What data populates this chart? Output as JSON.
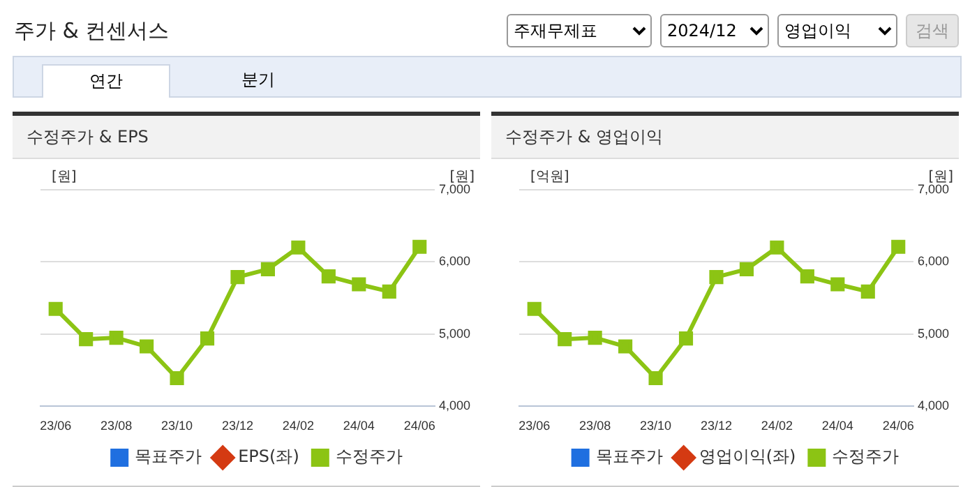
{
  "chart_data": [
    {
      "type": "other",
      "title": "주가 & 컨센서스",
      "annotations": [
        "주재무제표",
        "2024/12",
        "영업이익",
        "검색",
        "연간",
        "분기"
      ]
    },
    {
      "type": "line",
      "title": "수정주가 & EPS",
      "ylabel": "[원]",
      "y2label": "[원]",
      "categories": [
        "23/06",
        null,
        "23/08",
        null,
        "23/10",
        null,
        "23/12",
        null,
        "24/02",
        null,
        "24/04",
        null,
        "24/06"
      ],
      "y2lim": [
        4000,
        7000
      ],
      "y2ticks": [
        {
          "value": 4000,
          "label": "4,000"
        },
        {
          "value": 5000,
          "label": "5,000"
        },
        {
          "value": 6000,
          "label": "6,000"
        },
        {
          "value": 7000,
          "label": "7,000"
        }
      ],
      "grid": "y",
      "legend": "bottom",
      "series": [
        {
          "name": "목표주가",
          "color": "#1f6fe0",
          "marker": "square",
          "values": [
            null,
            null,
            null,
            null,
            null,
            null,
            null,
            null,
            null,
            null,
            null,
            null,
            null
          ]
        },
        {
          "name": "EPS(좌)",
          "color": "#d43a12",
          "marker": "diamond",
          "values": [
            null,
            null,
            null,
            null,
            null,
            null,
            null,
            null,
            null,
            null,
            null,
            null,
            null
          ]
        },
        {
          "name": "수정주가",
          "color": "#8cc414",
          "marker": "square",
          "axis": "y2",
          "values": [
            5350,
            4930,
            4950,
            4830,
            4390,
            4940,
            5790,
            5900,
            6200,
            5800,
            5690,
            5590,
            6210
          ]
        }
      ]
    },
    {
      "type": "line",
      "title": "수정주가 & 영업이익",
      "ylabel": "[억원]",
      "y2label": "[원]",
      "categories": [
        "23/06",
        null,
        "23/08",
        null,
        "23/10",
        null,
        "23/12",
        null,
        "24/02",
        null,
        "24/04",
        null,
        "24/06"
      ],
      "y2lim": [
        4000,
        7000
      ],
      "y2ticks": [
        {
          "value": 4000,
          "label": "4,000"
        },
        {
          "value": 5000,
          "label": "5,000"
        },
        {
          "value": 6000,
          "label": "6,000"
        },
        {
          "value": 7000,
          "label": "7,000"
        }
      ],
      "grid": "y",
      "legend": "bottom",
      "series": [
        {
          "name": "목표주가",
          "color": "#1f6fe0",
          "marker": "square",
          "values": [
            null,
            null,
            null,
            null,
            null,
            null,
            null,
            null,
            null,
            null,
            null,
            null,
            null
          ]
        },
        {
          "name": "영업이익(좌)",
          "color": "#d43a12",
          "marker": "diamond",
          "values": [
            null,
            null,
            null,
            null,
            null,
            null,
            null,
            null,
            null,
            null,
            null,
            null,
            null
          ]
        },
        {
          "name": "수정주가",
          "color": "#8cc414",
          "marker": "square",
          "axis": "y2",
          "values": [
            5350,
            4930,
            4950,
            4830,
            4390,
            4940,
            5790,
            5900,
            6200,
            5800,
            5690,
            5590,
            6210
          ]
        }
      ]
    }
  ]
}
